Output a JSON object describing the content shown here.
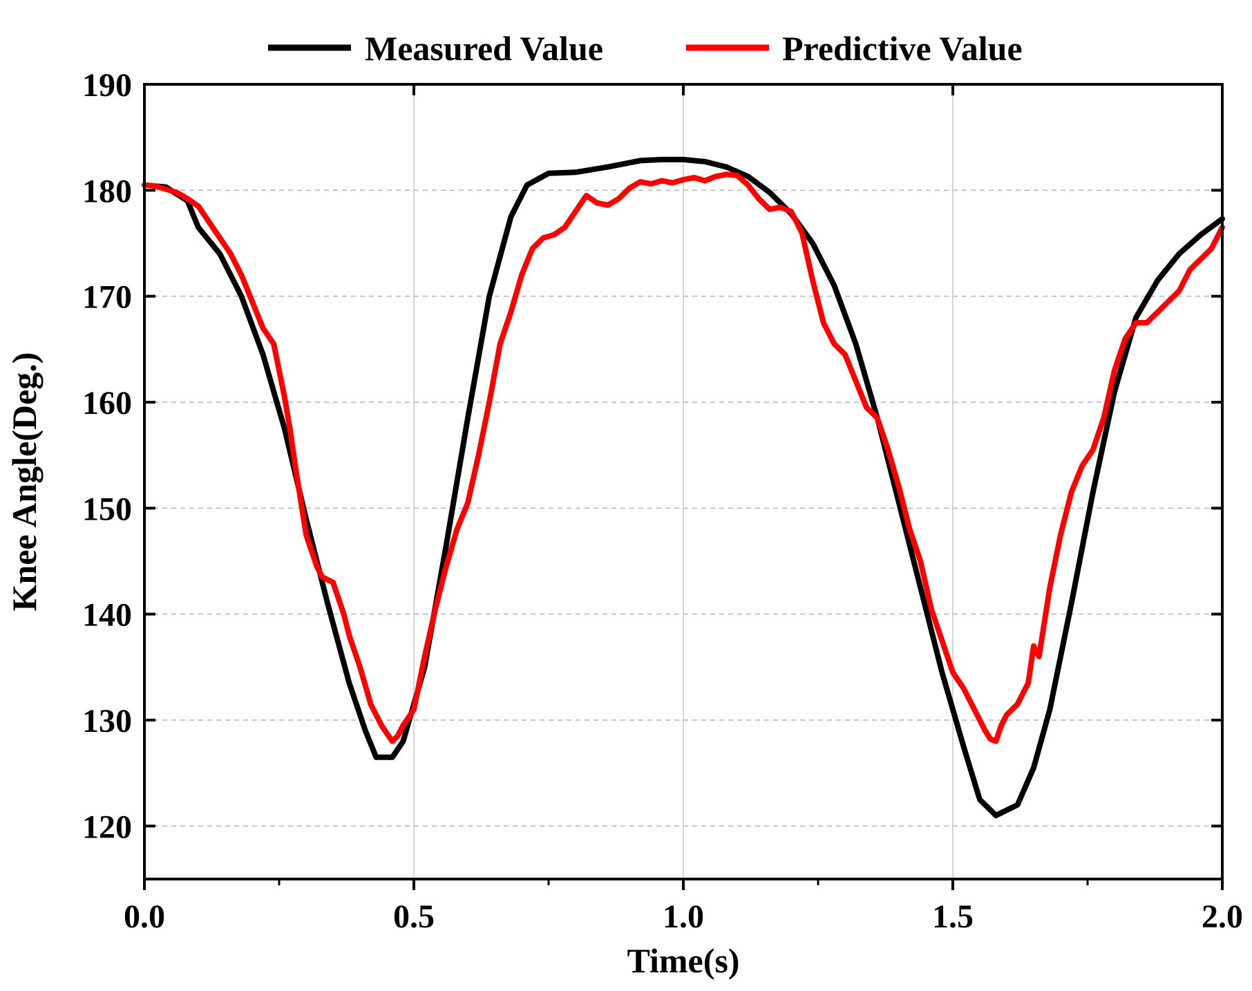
{
  "chart_data": {
    "type": "line",
    "title": "",
    "xlabel": "Time(s)",
    "ylabel": "Knee Angle(Deg.)",
    "xlim": [
      0.0,
      2.0
    ],
    "ylim": [
      115,
      190
    ],
    "xticks": [
      0.0,
      0.5,
      1.0,
      1.5,
      2.0
    ],
    "xtick_labels": [
      "0.0",
      "0.5",
      "1.0",
      "1.5",
      "2.0"
    ],
    "yticks": [
      120,
      130,
      140,
      150,
      160,
      170,
      180,
      190
    ],
    "ytick_labels": [
      "120",
      "130",
      "140",
      "150",
      "160",
      "170",
      "180",
      "190"
    ],
    "grid": true,
    "legend_position": "top-center-outside",
    "series": [
      {
        "name": "Measured Value",
        "color": "#000000",
        "x": [
          0.0,
          0.04,
          0.08,
          0.1,
          0.14,
          0.18,
          0.22,
          0.26,
          0.3,
          0.34,
          0.38,
          0.41,
          0.43,
          0.46,
          0.48,
          0.52,
          0.56,
          0.6,
          0.64,
          0.68,
          0.71,
          0.75,
          0.8,
          0.86,
          0.92,
          0.96,
          1.0,
          1.04,
          1.08,
          1.12,
          1.16,
          1.2,
          1.24,
          1.28,
          1.32,
          1.36,
          1.4,
          1.44,
          1.48,
          1.52,
          1.55,
          1.58,
          1.62,
          1.65,
          1.68,
          1.72,
          1.76,
          1.8,
          1.84,
          1.88,
          1.92,
          1.96,
          2.0
        ],
        "values": [
          180.5,
          180.3,
          179.0,
          176.5,
          174.0,
          170.0,
          164.5,
          157.5,
          149.0,
          141.0,
          133.5,
          129.0,
          126.5,
          126.5,
          128.0,
          135.0,
          146.5,
          158.5,
          170.0,
          177.5,
          180.5,
          181.6,
          181.7,
          182.2,
          182.8,
          182.9,
          182.9,
          182.7,
          182.2,
          181.3,
          179.8,
          177.8,
          175.0,
          171.0,
          165.5,
          158.5,
          150.5,
          142.5,
          134.5,
          127.5,
          122.5,
          121.0,
          122.0,
          125.5,
          131.0,
          141.0,
          151.5,
          161.0,
          168.0,
          171.5,
          174.0,
          175.8,
          177.3
        ]
      },
      {
        "name": "Predictive Value",
        "color": "#ff0000",
        "x": [
          0.0,
          0.02,
          0.04,
          0.06,
          0.08,
          0.1,
          0.12,
          0.14,
          0.16,
          0.18,
          0.2,
          0.22,
          0.24,
          0.25,
          0.26,
          0.27,
          0.28,
          0.3,
          0.32,
          0.33,
          0.35,
          0.37,
          0.38,
          0.4,
          0.42,
          0.44,
          0.46,
          0.47,
          0.48,
          0.5,
          0.52,
          0.54,
          0.56,
          0.58,
          0.6,
          0.62,
          0.64,
          0.66,
          0.68,
          0.7,
          0.72,
          0.74,
          0.76,
          0.78,
          0.8,
          0.82,
          0.84,
          0.86,
          0.88,
          0.9,
          0.92,
          0.94,
          0.96,
          0.98,
          1.0,
          1.02,
          1.04,
          1.06,
          1.08,
          1.1,
          1.12,
          1.14,
          1.16,
          1.18,
          1.2,
          1.22,
          1.24,
          1.26,
          1.28,
          1.3,
          1.32,
          1.34,
          1.36,
          1.38,
          1.4,
          1.42,
          1.44,
          1.46,
          1.48,
          1.5,
          1.52,
          1.54,
          1.56,
          1.57,
          1.58,
          1.59,
          1.6,
          1.62,
          1.64,
          1.65,
          1.66,
          1.68,
          1.7,
          1.72,
          1.74,
          1.76,
          1.78,
          1.8,
          1.82,
          1.84,
          1.86,
          1.88,
          1.9,
          1.92,
          1.94,
          1.96,
          1.98,
          2.0
        ],
        "values": [
          180.5,
          180.4,
          180.1,
          179.8,
          179.2,
          178.5,
          177.0,
          175.5,
          174.0,
          172.0,
          169.5,
          167.0,
          165.5,
          163.0,
          160.5,
          157.5,
          154.0,
          147.5,
          144.5,
          143.5,
          143.0,
          140.0,
          138.0,
          135.0,
          131.5,
          129.5,
          128.0,
          128.5,
          129.5,
          131.0,
          136.0,
          140.5,
          144.5,
          148.0,
          150.5,
          155.0,
          160.0,
          165.5,
          168.5,
          172.0,
          174.5,
          175.5,
          175.8,
          176.5,
          178.0,
          179.5,
          178.8,
          178.6,
          179.2,
          180.2,
          180.8,
          180.6,
          180.9,
          180.7,
          181.0,
          181.2,
          180.9,
          181.3,
          181.5,
          181.4,
          180.5,
          179.2,
          178.2,
          178.4,
          178.0,
          176.0,
          171.5,
          167.5,
          165.5,
          164.5,
          162.0,
          159.5,
          158.5,
          155.5,
          152.0,
          148.0,
          145.0,
          140.5,
          137.5,
          134.5,
          133.0,
          131.0,
          129.0,
          128.2,
          128.0,
          129.5,
          130.5,
          131.5,
          133.5,
          137.0,
          136.0,
          142.5,
          147.5,
          151.5,
          154.0,
          155.5,
          158.5,
          163.0,
          166.0,
          167.5,
          167.5,
          168.5,
          169.5,
          170.5,
          172.5,
          173.5,
          174.5,
          176.5
        ]
      }
    ]
  }
}
